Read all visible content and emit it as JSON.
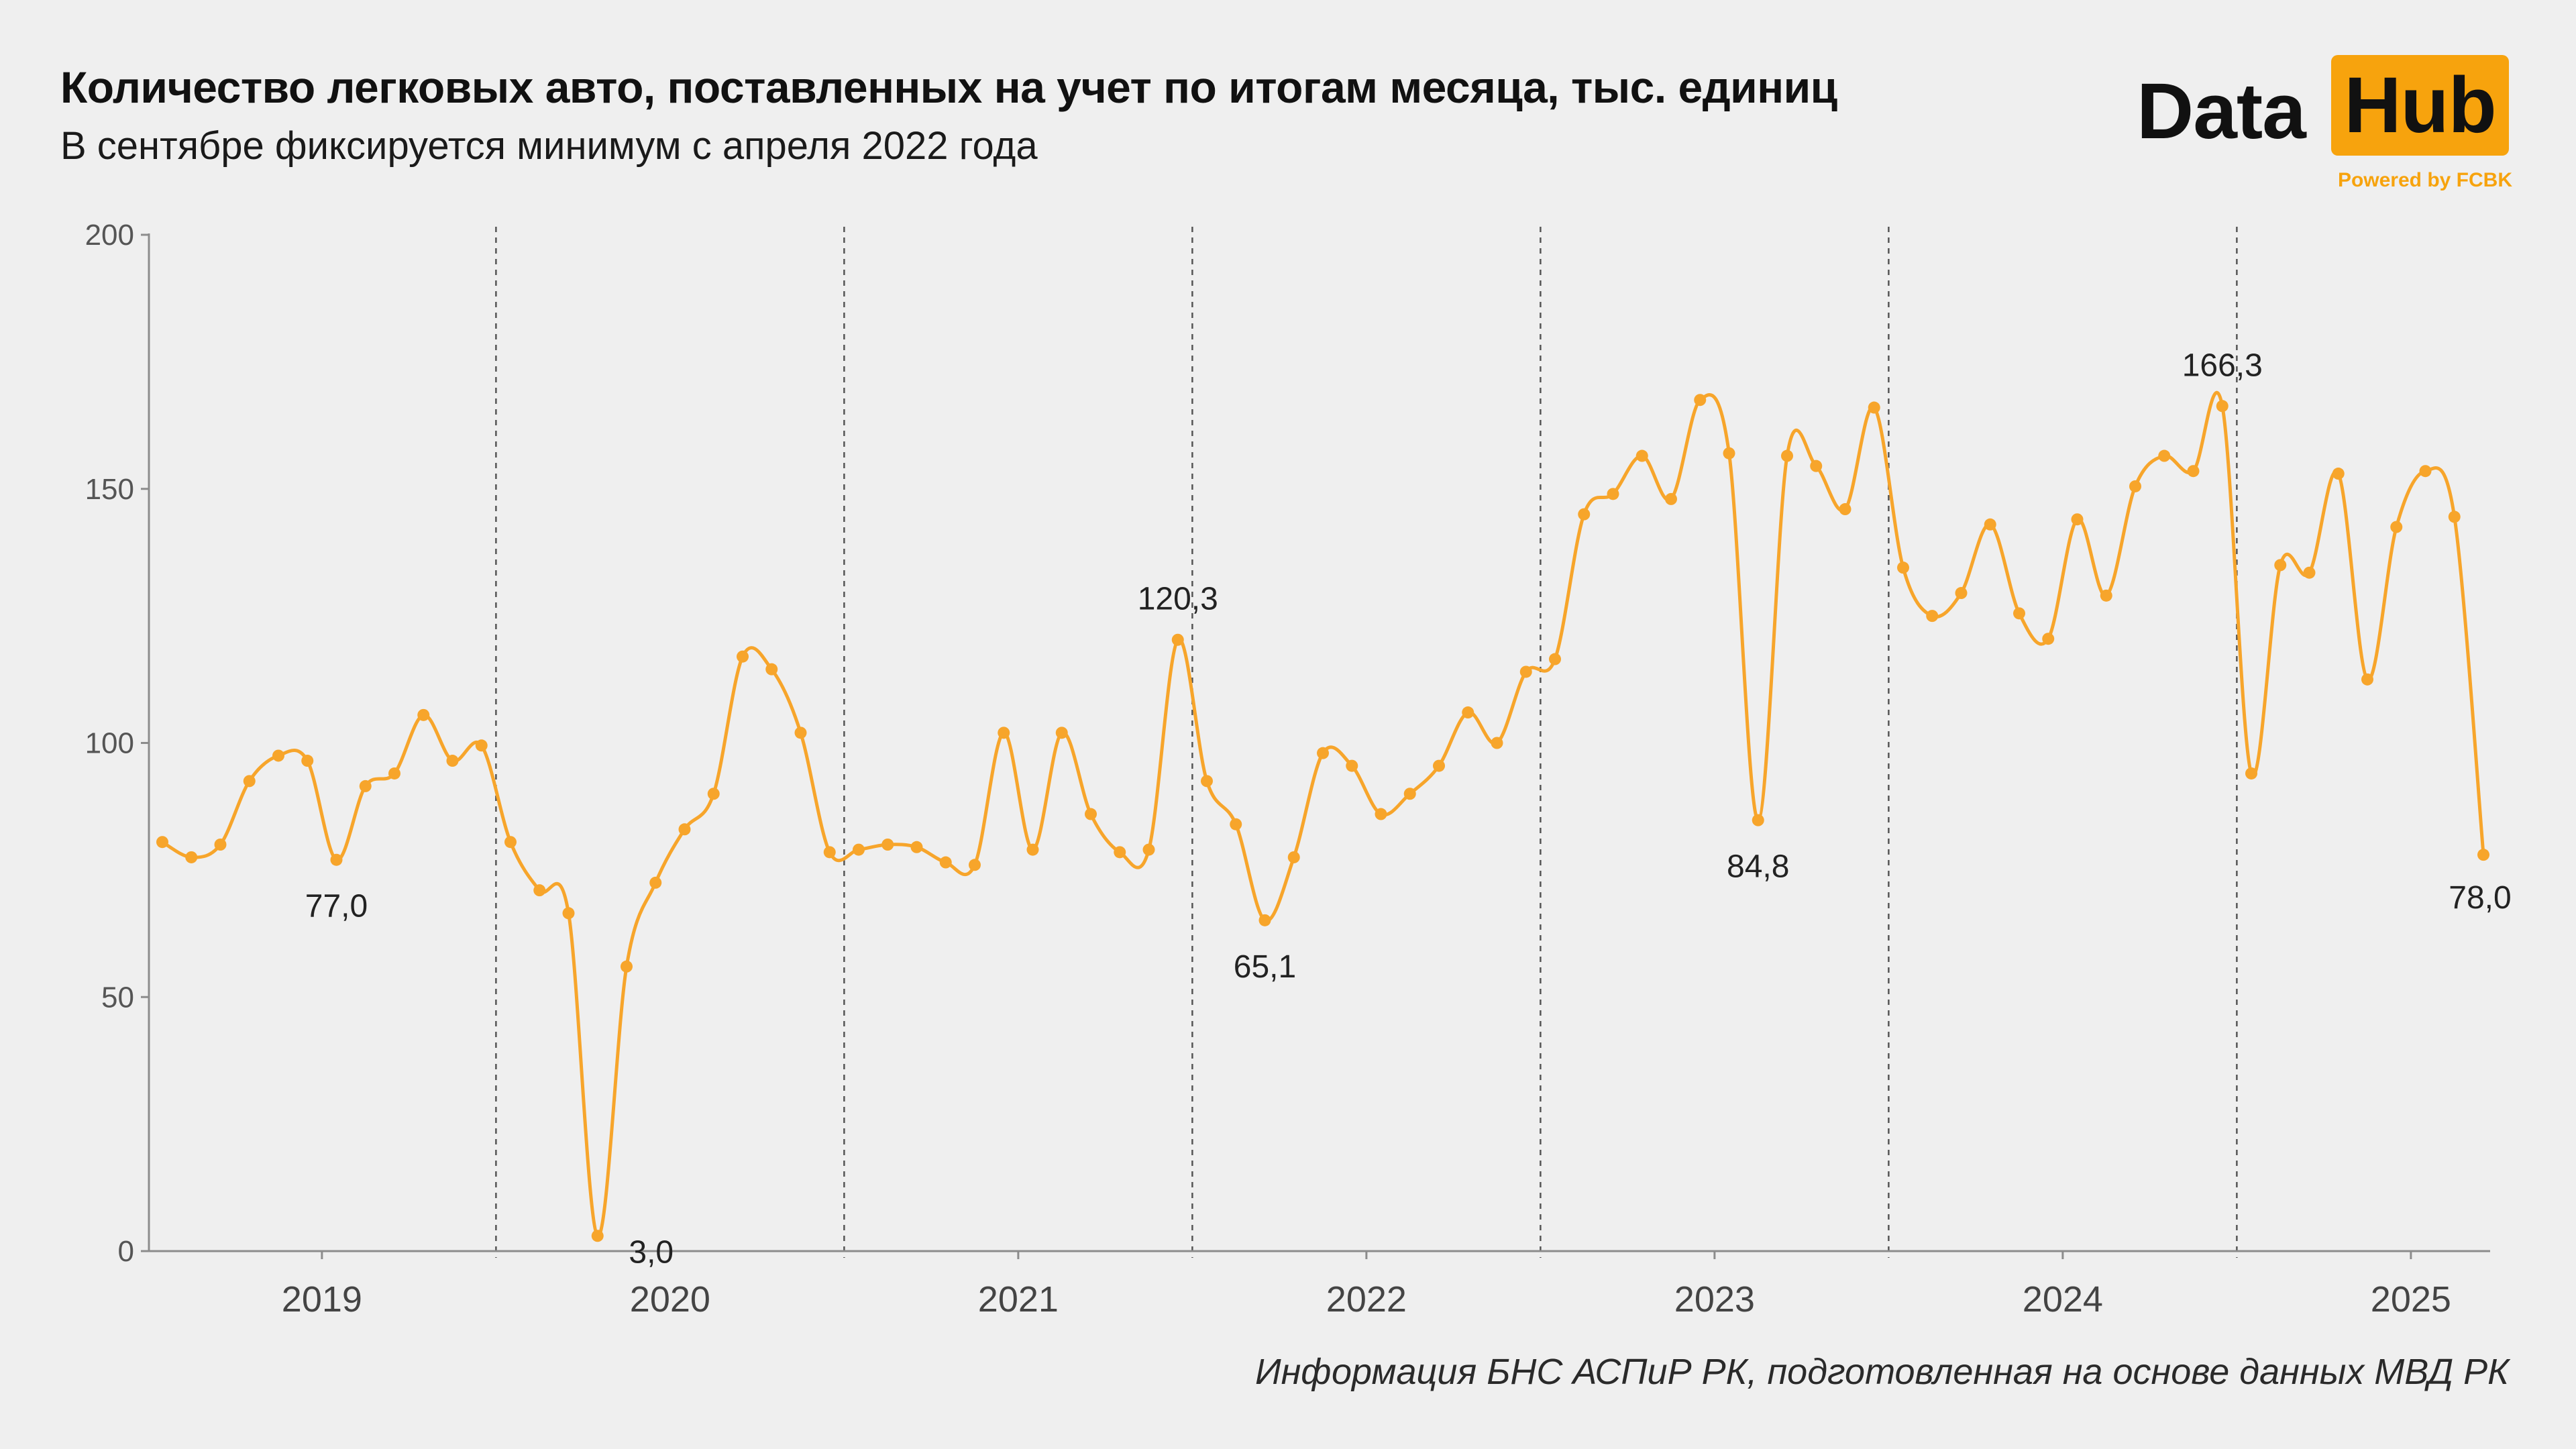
{
  "header": {
    "title": "Количество легковых авто, поставленных на учет по итогам месяца, тыс. единиц",
    "subtitle": "В сентябре фиксируется минимум с апреля 2022 года"
  },
  "logo": {
    "word1": "Data",
    "word2": "Hub",
    "tagline": "Powered by FCBK",
    "accent_color": "#f7a30d"
  },
  "source": "Информация БНС АСПиР РК, подготовленная на основе данных МВД РК",
  "chart_data": {
    "type": "line",
    "title": "Количество легковых авто, поставленных на учет по итогам месяца, тыс. единиц",
    "subtitle": "В сентябре фиксируется минимум с апреля 2022 года",
    "xlabel": "",
    "ylabel": "",
    "ylim": [
      0,
      200
    ],
    "yticks": [
      0,
      50,
      100,
      150,
      200
    ],
    "ytick_labels": [
      "0",
      "50",
      "100",
      "150",
      "200"
    ],
    "years": [
      "2019",
      "2020",
      "2021",
      "2022",
      "2023",
      "2024",
      "2025"
    ],
    "grid": false,
    "line_color": "#f7a52b",
    "values": [
      80.5,
      77.5,
      80.0,
      92.5,
      97.5,
      96.5,
      77.0,
      91.5,
      94.0,
      105.5,
      96.5,
      99.5,
      80.5,
      71.0,
      66.5,
      3.0,
      56.0,
      72.5,
      83.0,
      90.0,
      117.0,
      114.5,
      102.0,
      78.5,
      79.0,
      80.0,
      79.5,
      76.5,
      76.0,
      102.0,
      79.0,
      102.0,
      86.0,
      78.5,
      79.0,
      120.3,
      92.5,
      84.0,
      65.1,
      77.5,
      98.0,
      95.5,
      86.0,
      90.0,
      95.5,
      106.0,
      100.0,
      114.0,
      116.5,
      145.0,
      149.0,
      156.5,
      148.0,
      167.5,
      157.0,
      84.8,
      156.5,
      154.5,
      146.0,
      166.0,
      134.5,
      125.0,
      129.5,
      143.0,
      125.5,
      120.5,
      144.0,
      129.0,
      150.5,
      156.5,
      153.5,
      166.3,
      94.0,
      135.0,
      133.5,
      153.0,
      112.5,
      142.5,
      153.5,
      144.5,
      78.0
    ],
    "annotations": [
      {
        "index": 6,
        "text": "77,0"
      },
      {
        "index": 15,
        "text": "3,0"
      },
      {
        "index": 35,
        "text": "120,3"
      },
      {
        "index": 38,
        "text": "65,1"
      },
      {
        "index": 55,
        "text": "84,8"
      },
      {
        "index": 71,
        "text": "166,3"
      },
      {
        "index": 80,
        "text": "78,0"
      }
    ]
  }
}
